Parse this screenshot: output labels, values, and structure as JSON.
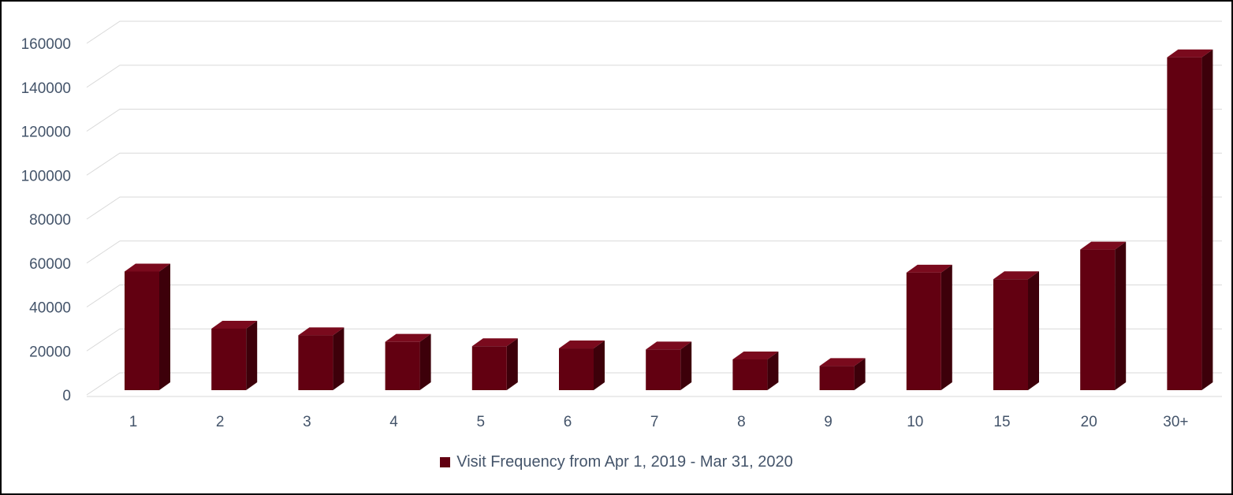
{
  "chart_data": {
    "type": "bar",
    "style": "3d-column",
    "categories": [
      "1",
      "2",
      "3",
      "4",
      "5",
      "6",
      "7",
      "8",
      "9",
      "10",
      "15",
      "20",
      "30+"
    ],
    "series": [
      {
        "name": "Visit Frequency from Apr 1, 2019 - Mar 31, 2020",
        "values": [
          54000,
          28000,
          25000,
          22000,
          20000,
          19000,
          18500,
          14000,
          11000,
          53500,
          50500,
          64000,
          151500
        ],
        "color": "#620011",
        "side_color": "#3d000a",
        "top_color": "#7a0a1d"
      }
    ],
    "ylim": [
      0,
      160000
    ],
    "yticks": [
      "0",
      "20000",
      "40000",
      "60000",
      "80000",
      "100000",
      "120000",
      "140000",
      "160000"
    ],
    "grid": true,
    "gridline_color": "#d9d9d9",
    "legend_position": "bottom",
    "title": "",
    "xlabel": "",
    "ylabel": ""
  }
}
